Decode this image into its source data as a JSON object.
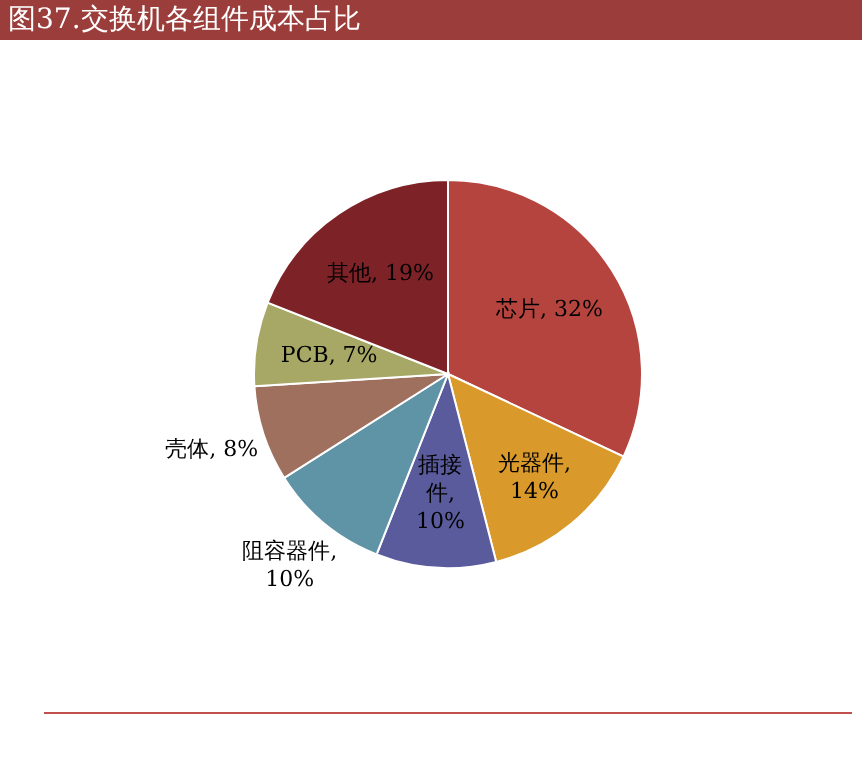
{
  "chart_data": {
    "type": "pie",
    "title": "图37.交换机各组件成本占比",
    "categories": [
      "芯片",
      "光器件",
      "插接件",
      "阻容器件",
      "壳体",
      "PCB",
      "其他"
    ],
    "values": [
      32,
      14,
      10,
      10,
      8,
      7,
      19
    ],
    "value_labels": [
      ", 32%",
      ", 14%",
      ", 10%",
      ", 10%",
      ", 8%",
      ", 7%",
      ", 19%"
    ],
    "colors": [
      "#b5443f",
      "#d99a2b",
      "#5a5b9c",
      "#5f93a6",
      "#a0705e",
      "#a7a866",
      "#7d2328"
    ],
    "legend": false
  }
}
